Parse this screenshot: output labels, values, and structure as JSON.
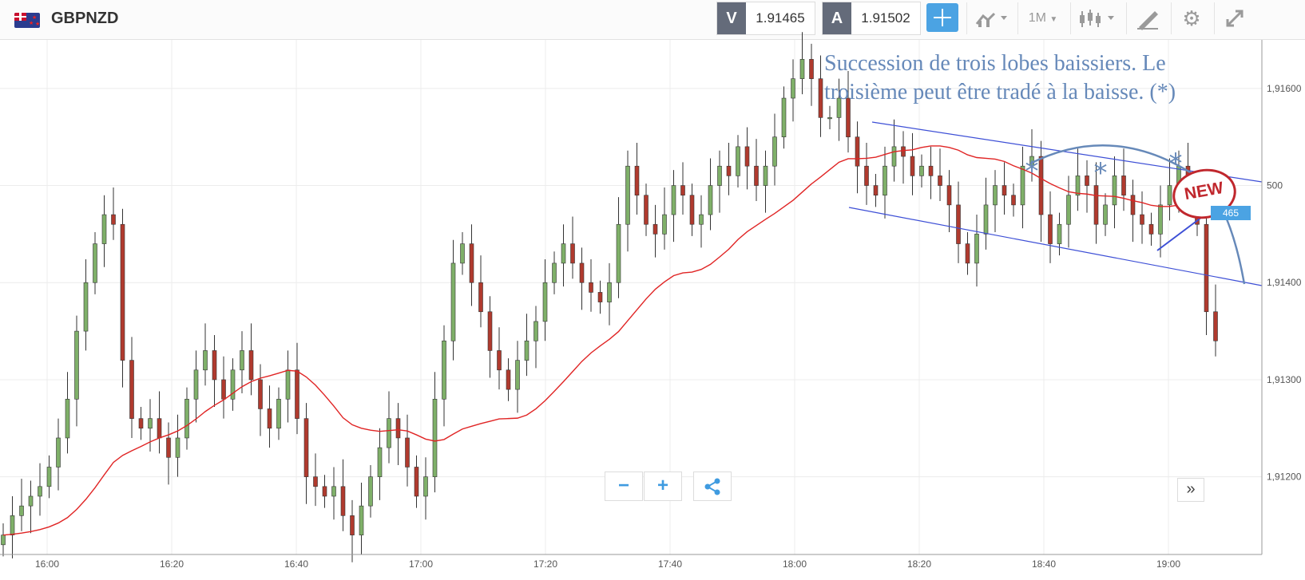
{
  "header": {
    "symbol": "GBPNZD",
    "sell_tag": "V",
    "sell_price": "1.91465",
    "buy_tag": "A",
    "buy_price": "1.91502",
    "timeframe": "1M",
    "icons": [
      "flag-icon",
      "crosshair-icon",
      "chart-type-icon",
      "candles-icon",
      "draw-icon",
      "gear-icon",
      "fullscreen-icon"
    ]
  },
  "annotation": "Succession de trois lobes baissiers. Le troisième peut être tradé à la baisse. (*)",
  "badge": "NEW",
  "price_tag": "465",
  "controls": {
    "zoom_out": "−",
    "zoom_in": "+",
    "share_icon": "share-icon",
    "scroll_end": "»"
  },
  "chart_data": {
    "type": "candlestick",
    "symbol": "GBPNZD",
    "x_ticks": [
      "16:00",
      "16:20",
      "16:40",
      "17:00",
      "17:20",
      "17:40",
      "18:00",
      "18:20",
      "18:40",
      "19:00"
    ],
    "y_ticks": [
      "1,91600",
      "500",
      "1,91400",
      "1,91300",
      "1,91200"
    ],
    "y_tick_values": [
      1.916,
      1.915,
      1.914,
      1.913,
      1.912
    ],
    "ylim": [
      1.9112,
      1.9165
    ],
    "up_color": "#7fb069",
    "down_color": "#b03a2e",
    "closes": [
      1.9114,
      1.9116,
      1.9117,
      1.9118,
      1.9119,
      1.9121,
      1.9124,
      1.9128,
      1.9135,
      1.914,
      1.9144,
      1.9147,
      1.9146,
      1.9132,
      1.9126,
      1.9125,
      1.9126,
      1.9124,
      1.9122,
      1.9124,
      1.9128,
      1.9131,
      1.9133,
      1.913,
      1.9128,
      1.9131,
      1.9133,
      1.913,
      1.9127,
      1.9125,
      1.9128,
      1.9131,
      1.9126,
      1.912,
      1.9119,
      1.9118,
      1.9119,
      1.9116,
      1.9114,
      1.9117,
      1.912,
      1.9123,
      1.9126,
      1.9124,
      1.9121,
      1.9118,
      1.912,
      1.9128,
      1.9134,
      1.9142,
      1.9144,
      1.914,
      1.9137,
      1.9133,
      1.9131,
      1.9129,
      1.9132,
      1.9134,
      1.9136,
      1.914,
      1.9142,
      1.9144,
      1.9142,
      1.914,
      1.9139,
      1.9138,
      1.914,
      1.9146,
      1.9152,
      1.9149,
      1.9146,
      1.9145,
      1.9147,
      1.915,
      1.9149,
      1.9146,
      1.9147,
      1.915,
      1.9152,
      1.9151,
      1.9154,
      1.9152,
      1.915,
      1.9152,
      1.9155,
      1.9159,
      1.9161,
      1.9163,
      1.9161,
      1.9157,
      1.9157,
      1.9159,
      1.9155,
      1.9152,
      1.915,
      1.9149,
      1.9152,
      1.9154,
      1.9153,
      1.9151,
      1.9152,
      1.9151,
      1.915,
      1.9148,
      1.9144,
      1.9142,
      1.9145,
      1.9148,
      1.915,
      1.9149,
      1.9148,
      1.9152,
      1.9153,
      1.9147,
      1.9144,
      1.9146,
      1.9149,
      1.9151,
      1.915,
      1.9146,
      1.9148,
      1.9151,
      1.9149,
      1.9147,
      1.9146,
      1.9145,
      1.9148,
      1.915,
      1.9152,
      1.915,
      1.9146,
      1.9137,
      1.9134
    ],
    "ma_line_color": "#e02424",
    "channel_color": "#3d4fd6"
  }
}
